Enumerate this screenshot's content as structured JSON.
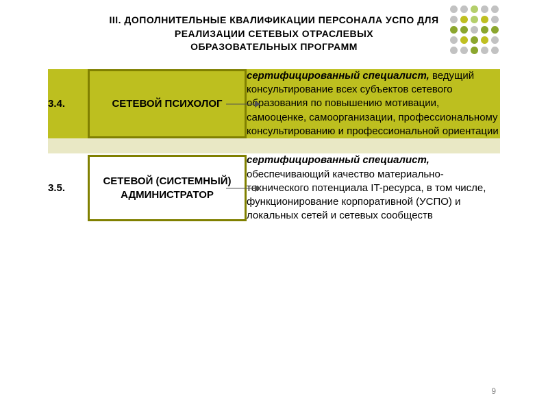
{
  "title_lines": [
    "III.  ДОПОЛНИТЕЛЬНЫЕ  КВАЛИФИКАЦИИ  ПЕРСОНАЛА  УСПО  ДЛЯ",
    "РЕАЛИЗАЦИИ  СЕТЕВЫХ   ОТРАСЛЕВЫХ",
    "ОБРАЗОВАТЕЛЬНЫХ  ПРОГРАММ"
  ],
  "colors": {
    "row_dark": "#bdbf1f",
    "row_light": "#e9e8c5",
    "box_border": "#808000",
    "text": "#000000",
    "page_bg": "#ffffff"
  },
  "dot_grid": {
    "rows": 5,
    "cols": 5,
    "dot_size": 11,
    "gap": 4,
    "colors": [
      [
        "#c2c2c2",
        "#c2c2c2",
        "#b4cf6b",
        "#c2c2c2",
        "#c2c2c2"
      ],
      [
        "#c2c2c2",
        "#bfbf21",
        "#b4cf6b",
        "#bfbf21",
        "#c2c2c2"
      ],
      [
        "#8ba62e",
        "#8ba62e",
        "#c0c0c0",
        "#8ba62e",
        "#8ba62e"
      ],
      [
        "#c2c2c2",
        "#bfbf21",
        "#8ba62e",
        "#bfbf21",
        "#c2c2c2"
      ],
      [
        "#c2c2c2",
        "#c2c2c2",
        "#8ba62e",
        "#c2c2c2",
        "#c2c2c2"
      ]
    ]
  },
  "rows": [
    {
      "num": "3.4.",
      "role": "СЕТЕВОЙ ПСИХОЛОГ",
      "desc_em": "сертифицированный специалист,",
      "desc_rest": " ведущий консультирование всех субъектов сетевого образования по повышению мотивации, самооценке, самоорганизации, профессиональному консультированию  и профессиональной  ориентации",
      "variant": "dark"
    },
    {
      "num": "3.5.",
      "role": "СЕТЕВОЙ (СИСТЕМНЫЙ) АДМИНИСТРАТОР",
      "desc_em": "сертифицированный специалист,",
      "desc_rest": " обеспечивающий качество материально-технического потенциала   IT-ресурса, в том числе,  функционирование корпоративной  (УСПО) и локальных сетей  и сетевых сообществ",
      "variant": "light"
    }
  ],
  "arrow": {
    "color": "#535353",
    "length": 50,
    "stroke": 1
  },
  "page_number": "9"
}
